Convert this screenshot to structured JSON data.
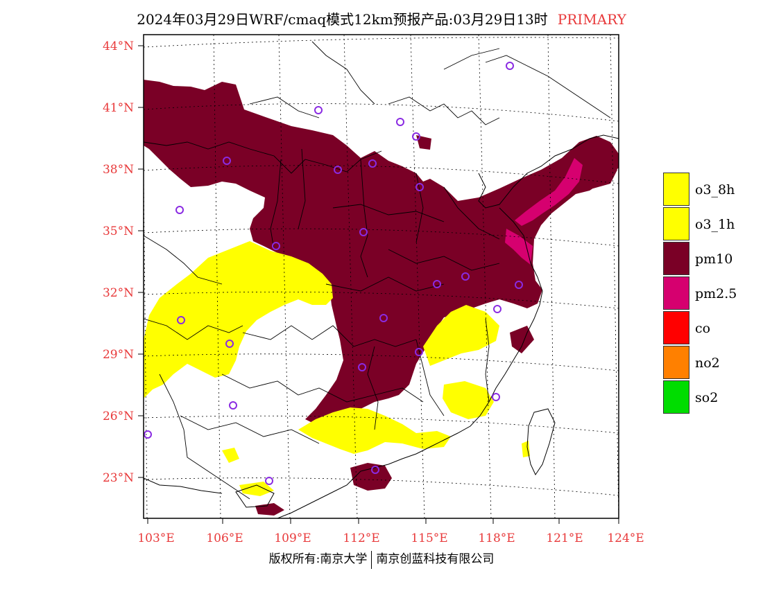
{
  "title": {
    "text": "2024年03月29日WRF/cmaq模式12km预报产品:03月29日13时",
    "tag": "PRIMARY"
  },
  "axes": {
    "lat_labels": [
      "44°N",
      "41°N",
      "38°N",
      "35°N",
      "32°N",
      "29°N",
      "26°N",
      "23°N"
    ],
    "lon_labels": [
      "103°E",
      "106°E",
      "109°E",
      "112°E",
      "115°E",
      "118°E",
      "121°E",
      "124°E"
    ]
  },
  "legend": {
    "items": [
      {
        "label": "o3_8h",
        "color": "#ffff00"
      },
      {
        "label": "o3_1h",
        "color": "#ffff00"
      },
      {
        "label": "pm10",
        "color": "#7a0026"
      },
      {
        "label": "pm2.5",
        "color": "#d6006f"
      },
      {
        "label": "co",
        "color": "#ff0000"
      },
      {
        "label": "no2",
        "color": "#ff8000"
      },
      {
        "label": "so2",
        "color": "#00dd00"
      }
    ]
  },
  "footer": {
    "left": "版权所有:南京大学",
    "right": "南京创蓝科技有限公司"
  },
  "colors": {
    "pm10": "#7a0026",
    "pm25": "#d6006f",
    "o3": "#ffff00",
    "station": "#8a2be2",
    "axis_label": "#e8393a"
  }
}
